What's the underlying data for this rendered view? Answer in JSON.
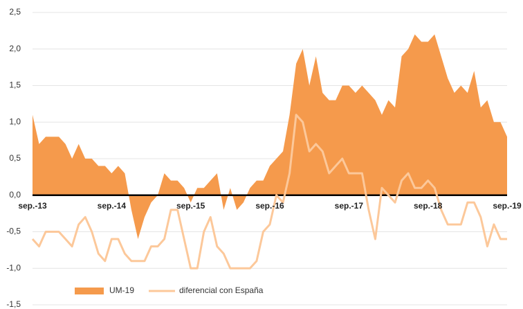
{
  "chart_data": {
    "type": "area-line",
    "categories": [
      "sep.-13",
      null,
      null,
      null,
      null,
      null,
      null,
      null,
      null,
      null,
      null,
      null,
      "sep.-14",
      null,
      null,
      null,
      null,
      null,
      null,
      null,
      null,
      null,
      null,
      null,
      "sep.-15",
      null,
      null,
      null,
      null,
      null,
      null,
      null,
      null,
      null,
      null,
      null,
      "sep.-16",
      null,
      null,
      null,
      null,
      null,
      null,
      null,
      null,
      null,
      null,
      null,
      "sep.-17",
      null,
      null,
      null,
      null,
      null,
      null,
      null,
      null,
      null,
      null,
      null,
      "sep.-18",
      null,
      null,
      null,
      null,
      null,
      null,
      null,
      null,
      null,
      null,
      null,
      "sep.-19"
    ],
    "series": [
      {
        "name": "UM-19",
        "color": "#f59a4c",
        "kind": "area",
        "values": [
          1.1,
          0.7,
          0.8,
          0.8,
          0.8,
          0.7,
          0.5,
          0.7,
          0.5,
          0.5,
          0.4,
          0.4,
          0.3,
          0.4,
          0.3,
          -0.2,
          -0.6,
          -0.3,
          -0.1,
          0.0,
          0.3,
          0.2,
          0.2,
          0.1,
          -0.1,
          0.1,
          0.1,
          0.2,
          0.3,
          -0.2,
          0.1,
          -0.2,
          -0.1,
          0.1,
          0.2,
          0.2,
          0.4,
          0.5,
          0.6,
          1.1,
          1.8,
          2.0,
          1.5,
          1.9,
          1.4,
          1.3,
          1.3,
          1.5,
          1.5,
          1.4,
          1.5,
          1.4,
          1.3,
          1.1,
          1.3,
          1.2,
          1.9,
          2.0,
          2.2,
          2.1,
          2.1,
          2.2,
          1.9,
          1.6,
          1.4,
          1.5,
          1.4,
          1.7,
          1.2,
          1.3,
          1.0,
          1.0,
          0.8
        ]
      },
      {
        "name": "diferencial con España",
        "color": "#fcc89a",
        "kind": "line",
        "values": [
          -0.6,
          -0.7,
          -0.5,
          -0.5,
          -0.5,
          -0.6,
          -0.7,
          -0.4,
          -0.3,
          -0.5,
          -0.8,
          -0.9,
          -0.6,
          -0.6,
          -0.8,
          -0.9,
          -0.9,
          -0.9,
          -0.7,
          -0.7,
          -0.6,
          -0.2,
          -0.2,
          -0.6,
          -1.0,
          -1.0,
          -0.5,
          -0.3,
          -0.7,
          -0.8,
          -1.0,
          -1.0,
          -1.0,
          -1.0,
          -0.9,
          -0.5,
          -0.4,
          0.0,
          -0.1,
          0.3,
          1.1,
          1.0,
          0.6,
          0.7,
          0.6,
          0.3,
          0.4,
          0.5,
          0.3,
          0.3,
          0.3,
          -0.2,
          -0.6,
          0.1,
          0.0,
          -0.1,
          0.2,
          0.3,
          0.1,
          0.1,
          0.2,
          0.1,
          -0.2,
          -0.4,
          -0.4,
          -0.4,
          -0.1,
          -0.1,
          -0.3,
          -0.7,
          -0.4,
          -0.6,
          -0.6
        ]
      }
    ],
    "ylim": [
      -1.5,
      2.5
    ],
    "yticks": [
      {
        "value": -1.5,
        "label": "-1,5"
      },
      {
        "value": -1.0,
        "label": "-1,0"
      },
      {
        "value": -0.5,
        "label": "-0,5"
      },
      {
        "value": 0,
        "label": "0,0"
      },
      {
        "value": 0.5,
        "label": "0,5"
      },
      {
        "value": 1.0,
        "label": "1,0"
      },
      {
        "value": 1.5,
        "label": "1,5"
      },
      {
        "value": 2.0,
        "label": "2,0"
      },
      {
        "value": 2.5,
        "label": "2,5"
      }
    ],
    "grid": true,
    "legend": "bottom"
  }
}
